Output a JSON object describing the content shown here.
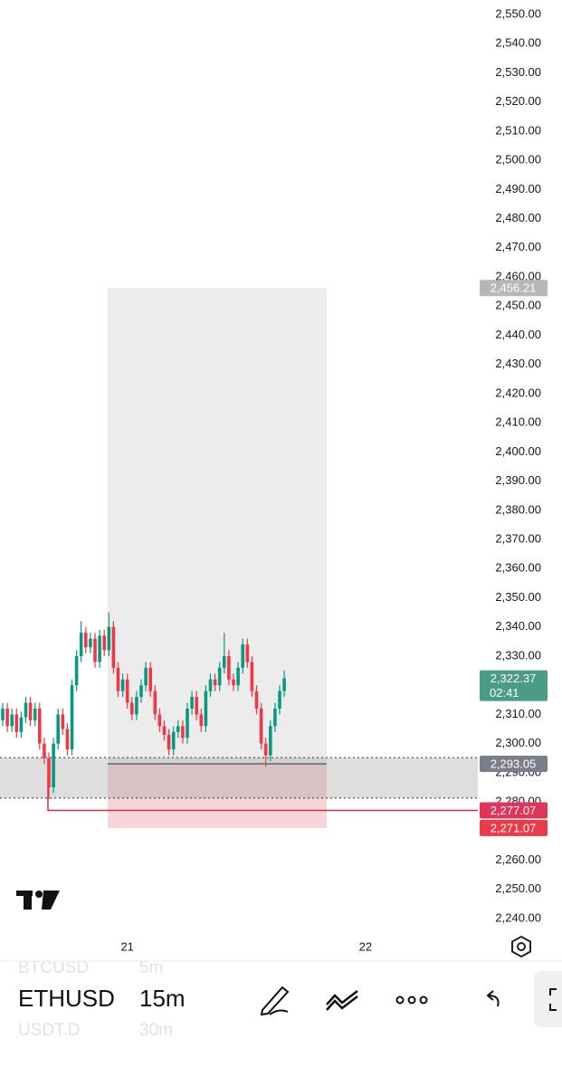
{
  "chart_data": {
    "type": "candlestick",
    "open": [
      2308,
      2312,
      2306,
      2310,
      2304,
      2309,
      2314,
      2308,
      2312,
      2300,
      2295,
      2285,
      2300,
      2310,
      2305,
      2298,
      2320,
      2330,
      2338,
      2333,
      2336,
      2328,
      2337,
      2332,
      2340,
      2326,
      2318,
      2322,
      2314,
      2310,
      2316,
      2320,
      2326,
      2318,
      2310,
      2306,
      2303,
      2298,
      2304,
      2306,
      2302,
      2312,
      2316,
      2310,
      2306,
      2318,
      2322,
      2320,
      2326,
      2330,
      2322,
      2320,
      2326,
      2334,
      2328,
      2318,
      2312,
      2300,
      2296,
      2306,
      2312,
      2318
    ],
    "high": [
      2314,
      2314,
      2312,
      2312,
      2311,
      2316,
      2316,
      2314,
      2314,
      2302,
      2297,
      2302,
      2312,
      2312,
      2307,
      2322,
      2332,
      2342,
      2340,
      2338,
      2338,
      2339,
      2339,
      2345,
      2342,
      2328,
      2324,
      2324,
      2316,
      2318,
      2322,
      2328,
      2328,
      2320,
      2312,
      2308,
      2305,
      2306,
      2308,
      2308,
      2314,
      2318,
      2318,
      2312,
      2320,
      2324,
      2324,
      2328,
      2338,
      2332,
      2324,
      2328,
      2336,
      2336,
      2330,
      2320,
      2314,
      2302,
      2308,
      2314,
      2320,
      2325
    ],
    "low": [
      2306,
      2304,
      2304,
      2302,
      2302,
      2307,
      2306,
      2306,
      2298,
      2293,
      2281,
      2283,
      2298,
      2303,
      2296,
      2296,
      2318,
      2328,
      2331,
      2331,
      2326,
      2326,
      2330,
      2330,
      2324,
      2316,
      2316,
      2312,
      2308,
      2308,
      2314,
      2318,
      2316,
      2308,
      2304,
      2301,
      2296,
      2296,
      2302,
      2300,
      2300,
      2310,
      2308,
      2304,
      2304,
      2316,
      2318,
      2318,
      2324,
      2320,
      2318,
      2318,
      2324,
      2326,
      2316,
      2310,
      2298,
      2292,
      2294,
      2304,
      2310,
      2316
    ],
    "close": [
      2312,
      2306,
      2310,
      2304,
      2309,
      2314,
      2308,
      2312,
      2300,
      2295,
      2285,
      2300,
      2310,
      2305,
      2298,
      2320,
      2330,
      2338,
      2333,
      2336,
      2328,
      2337,
      2332,
      2340,
      2326,
      2318,
      2322,
      2314,
      2310,
      2316,
      2320,
      2326,
      2318,
      2310,
      2306,
      2303,
      2298,
      2304,
      2306,
      2302,
      2312,
      2316,
      2310,
      2306,
      2318,
      2322,
      2320,
      2326,
      2330,
      2322,
      2320,
      2326,
      2334,
      2328,
      2318,
      2312,
      2300,
      2296,
      2306,
      2312,
      2318,
      2322.37
    ],
    "up_color": "#089981",
    "down_color": "#f23645",
    "ylim": [
      2235.35,
      2554.96
    ],
    "yticks": [
      {
        "value": 2550,
        "label": "2,550.00"
      },
      {
        "value": 2540,
        "label": "2,540.00"
      },
      {
        "value": 2530,
        "label": "2,530.00"
      },
      {
        "value": 2520,
        "label": "2,520.00"
      },
      {
        "value": 2510,
        "label": "2,510.00"
      },
      {
        "value": 2500,
        "label": "2,500.00"
      },
      {
        "value": 2490,
        "label": "2,490.00"
      },
      {
        "value": 2480,
        "label": "2,480.00"
      },
      {
        "value": 2470,
        "label": "2,470.00"
      },
      {
        "value": 2460,
        "label": "2,460.00"
      },
      {
        "value": 2450,
        "label": "2,450.00"
      },
      {
        "value": 2440,
        "label": "2,440.00"
      },
      {
        "value": 2430,
        "label": "2,430.00"
      },
      {
        "value": 2420,
        "label": "2,420.00"
      },
      {
        "value": 2410,
        "label": "2,410.00"
      },
      {
        "value": 2400,
        "label": "2,400.00"
      },
      {
        "value": 2390,
        "label": "2,390.00"
      },
      {
        "value": 2380,
        "label": "2,380.00"
      },
      {
        "value": 2370,
        "label": "2,370.00"
      },
      {
        "value": 2360,
        "label": "2,360.00"
      },
      {
        "value": 2350,
        "label": "2,350.00"
      },
      {
        "value": 2340,
        "label": "2,340.00"
      },
      {
        "value": 2330,
        "label": "2,330.00"
      },
      {
        "value": 2320,
        "label": "2,320.00"
      },
      {
        "value": 2310,
        "label": "2,310.00"
      },
      {
        "value": 2300,
        "label": "2,300.00"
      },
      {
        "value": 2290,
        "label": "2,290.00"
      },
      {
        "value": 2280,
        "label": "2,280.00"
      },
      {
        "value": 2270,
        "label": "2,270.00"
      },
      {
        "value": 2260,
        "label": "2,260.00"
      },
      {
        "value": 2250,
        "label": "2,250.00"
      },
      {
        "value": 2240,
        "label": "2,240.00"
      }
    ],
    "xticks": [
      {
        "value": 27,
        "label": "21"
      },
      {
        "value": 78.6,
        "label": "22"
      }
    ],
    "price_markers": [
      {
        "value": 2456.21,
        "label": "2,456.21",
        "color": "#b7b7b7"
      },
      {
        "value": 2322.37,
        "label": "2,322.37",
        "sub": "02:41",
        "color": "#4a9c85"
      },
      {
        "value": 2293.05,
        "label": "2,293.05",
        "color": "#7b7e89"
      },
      {
        "value": 2277.07,
        "label": "2,277.07",
        "color": "#e0345a"
      },
      {
        "value": 2271.07,
        "label": "2,271.07",
        "color": "#eb3b48"
      }
    ],
    "position": {
      "entry": 2293.05,
      "target": 2456.21,
      "stop": 2271.07
    },
    "zone": [
      2281.3,
      2295.2
    ]
  },
  "toolbar": {
    "symbols": [
      {
        "symbol": "BTCUSD",
        "interval": "5m"
      },
      {
        "symbol": "ETHUSD",
        "interval": "15m"
      },
      {
        "symbol": "USDT.D",
        "interval": "30m"
      }
    ]
  }
}
